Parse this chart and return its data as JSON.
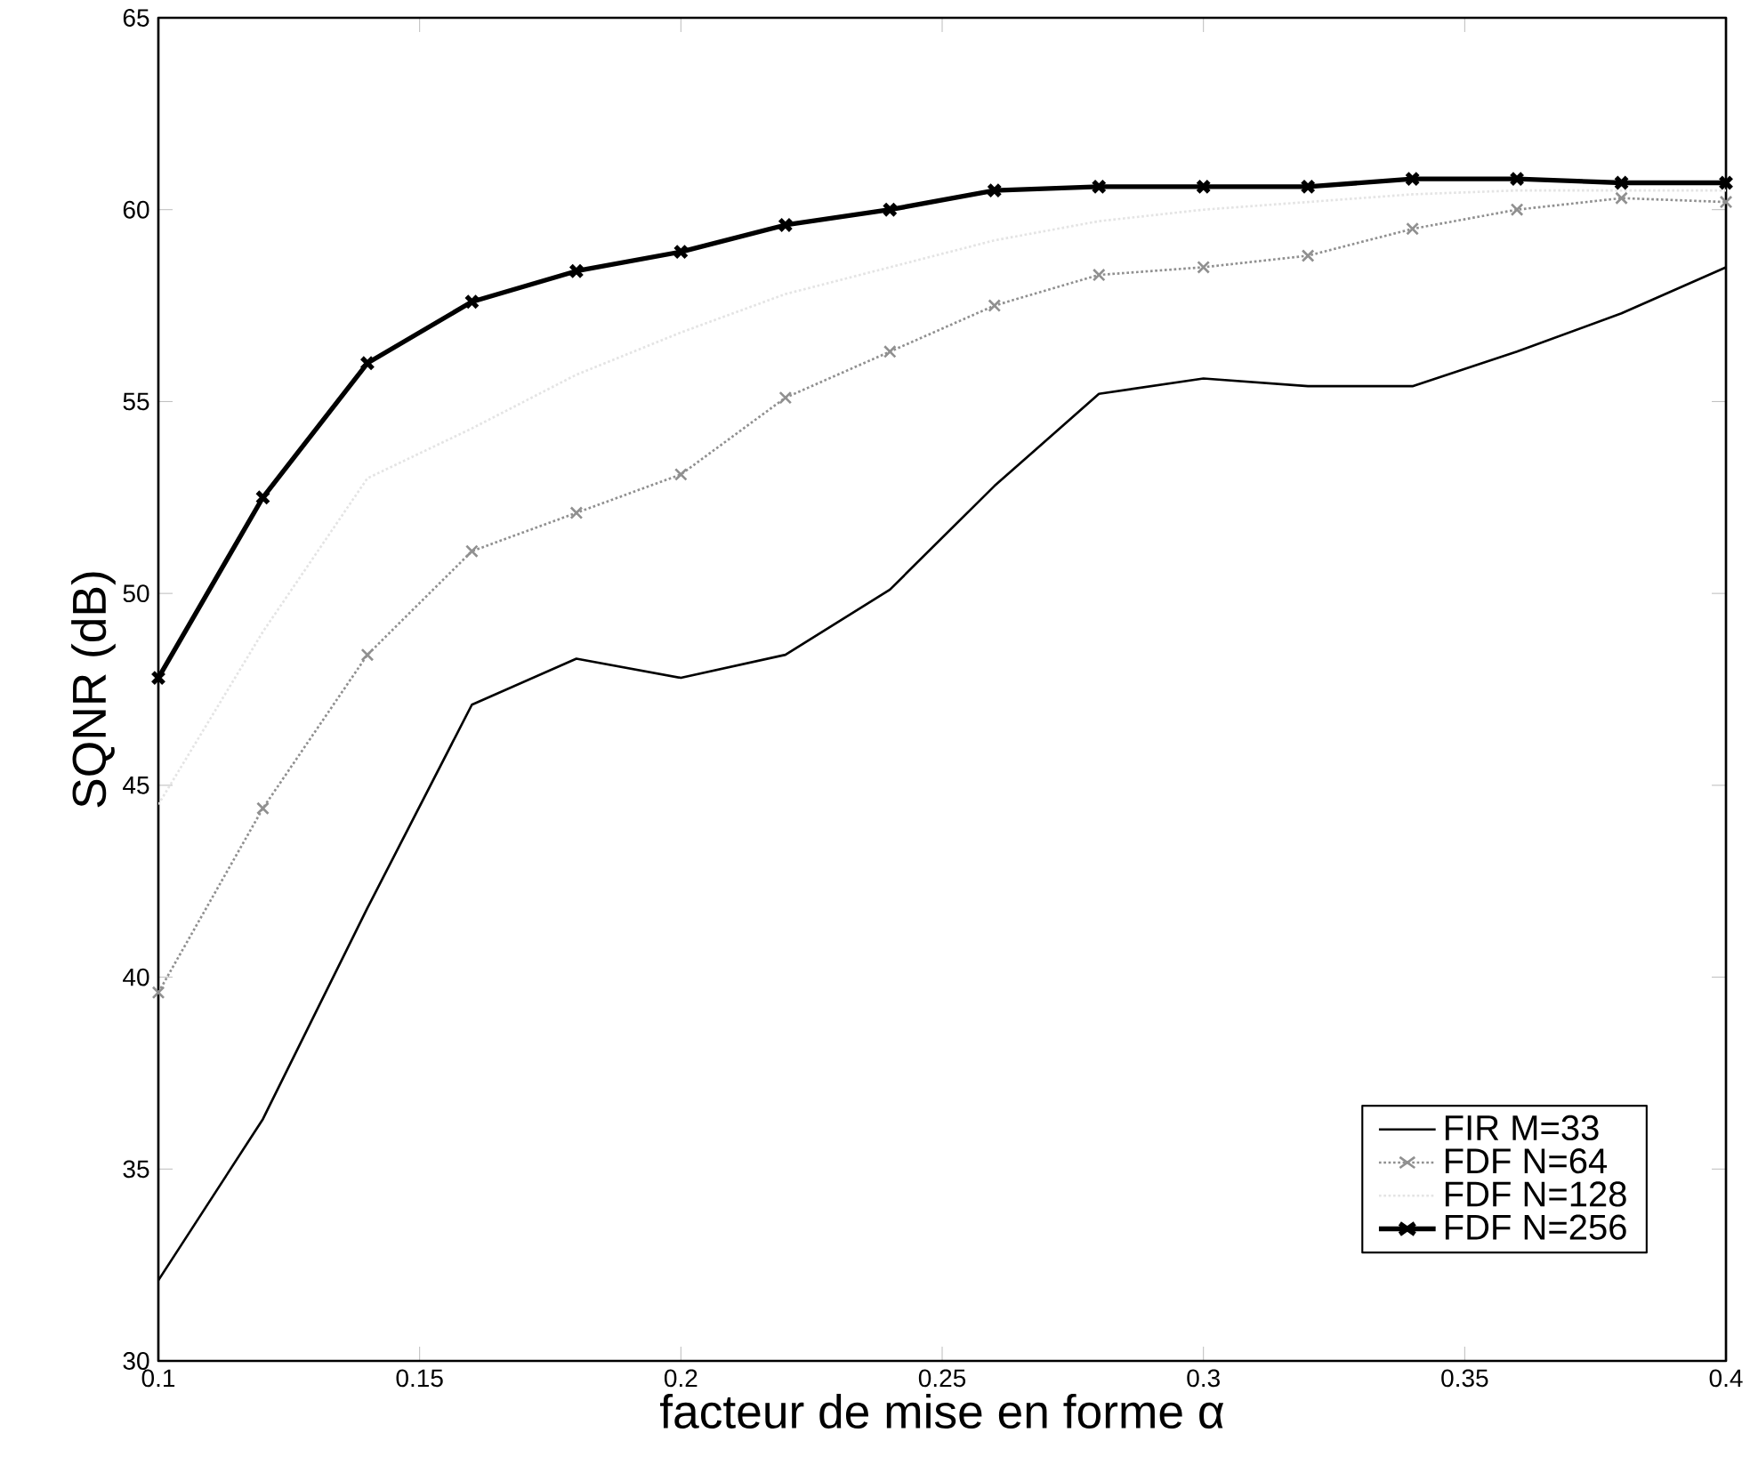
{
  "chart_data": {
    "type": "line",
    "xlabel": "facteur de mise en forme α",
    "ylabel": "SQNR (dB)",
    "x": [
      0.1,
      0.12,
      0.14,
      0.16,
      0.18,
      0.2,
      0.22,
      0.24,
      0.26,
      0.28,
      0.3,
      0.32,
      0.34,
      0.36,
      0.38,
      0.4
    ],
    "series": [
      {
        "name": "FIR M=33",
        "color": "#000000",
        "marker": "none",
        "line_style": "solid",
        "values": [
          32.1,
          36.3,
          41.8,
          47.1,
          48.3,
          47.8,
          48.4,
          50.1,
          52.8,
          55.2,
          55.6,
          55.4,
          55.4,
          56.3,
          57.3,
          58.5
        ]
      },
      {
        "name": "FDF N=64",
        "color": "#909090",
        "marker": "cross",
        "line_style": "dotted",
        "values": [
          39.6,
          44.4,
          48.4,
          51.1,
          52.1,
          53.1,
          55.1,
          56.3,
          57.5,
          58.3,
          58.5,
          58.8,
          59.5,
          60.0,
          60.3,
          60.2
        ]
      },
      {
        "name": "FDF N=128",
        "color": "#e4e4e4",
        "marker": "none",
        "line_style": "dotted",
        "values": [
          44.5,
          49.0,
          53.0,
          54.3,
          55.7,
          56.8,
          57.8,
          58.5,
          59.2,
          59.7,
          60.0,
          60.2,
          60.4,
          60.5,
          60.5,
          60.5
        ]
      },
      {
        "name": "FDF N=256",
        "color": "#000000",
        "marker": "cross",
        "line_style": "solid",
        "values": [
          47.8,
          52.5,
          56.0,
          57.6,
          58.4,
          58.9,
          59.6,
          60.0,
          60.5,
          60.6,
          60.6,
          60.6,
          60.8,
          60.8,
          60.7,
          60.7
        ]
      }
    ],
    "xlim": [
      0.1,
      0.4
    ],
    "ylim": [
      30,
      65
    ],
    "xticks": [
      0.1,
      0.15,
      0.2,
      0.25,
      0.3,
      0.35,
      0.4
    ],
    "yticks": [
      30,
      35,
      40,
      45,
      50,
      55,
      60,
      65
    ],
    "legend": "bottom right"
  }
}
